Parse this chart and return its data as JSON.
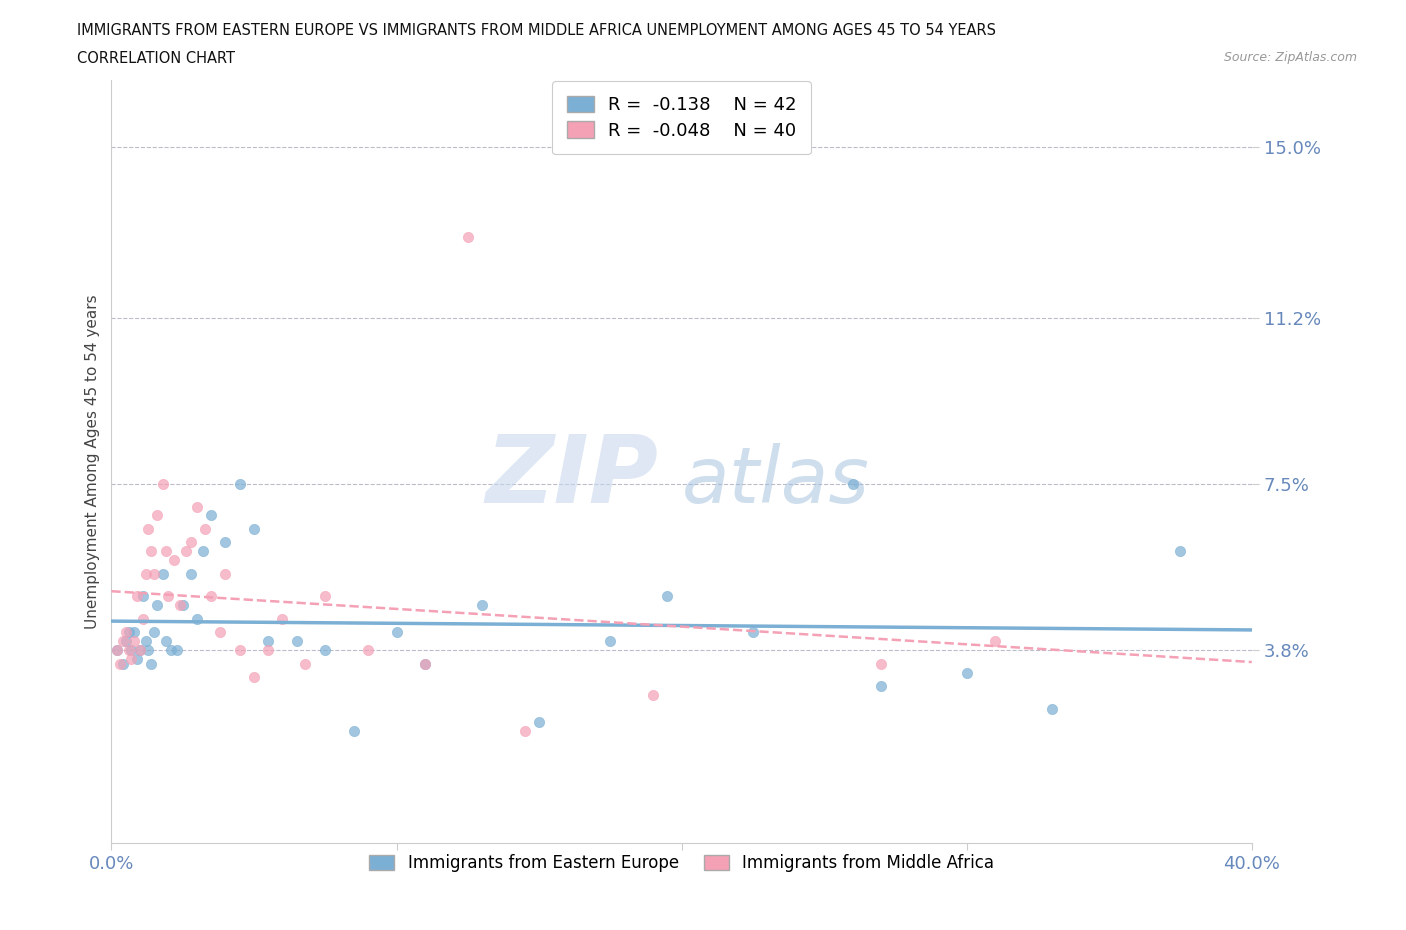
{
  "title_line1": "IMMIGRANTS FROM EASTERN EUROPE VS IMMIGRANTS FROM MIDDLE AFRICA UNEMPLOYMENT AMONG AGES 45 TO 54 YEARS",
  "title_line2": "CORRELATION CHART",
  "source_text": "Source: ZipAtlas.com",
  "ylabel": "Unemployment Among Ages 45 to 54 years",
  "xlim": [
    0.0,
    0.4
  ],
  "ylim": [
    -0.005,
    0.165
  ],
  "yticks": [
    0.038,
    0.075,
    0.112,
    0.15
  ],
  "ytick_labels": [
    "3.8%",
    "7.5%",
    "11.2%",
    "15.0%"
  ],
  "xticks": [
    0.0,
    0.1,
    0.2,
    0.3,
    0.4
  ],
  "xtick_labels_show": [
    "0.0%",
    "",
    "",
    "",
    "40.0%"
  ],
  "color_eastern_europe": "#7BAFD4",
  "color_middle_africa": "#F4A0B5",
  "legend_r_eastern": "-0.138",
  "legend_n_eastern": "42",
  "legend_r_middle": "-0.048",
  "legend_n_middle": "40",
  "ee_x": [
    0.002,
    0.004,
    0.005,
    0.006,
    0.007,
    0.008,
    0.009,
    0.01,
    0.011,
    0.012,
    0.013,
    0.014,
    0.015,
    0.016,
    0.018,
    0.019,
    0.021,
    0.023,
    0.025,
    0.028,
    0.03,
    0.032,
    0.035,
    0.04,
    0.045,
    0.05,
    0.055,
    0.065,
    0.075,
    0.085,
    0.1,
    0.11,
    0.13,
    0.15,
    0.175,
    0.195,
    0.225,
    0.26,
    0.27,
    0.3,
    0.33,
    0.375
  ],
  "ee_y": [
    0.038,
    0.035,
    0.04,
    0.042,
    0.038,
    0.042,
    0.036,
    0.038,
    0.05,
    0.04,
    0.038,
    0.035,
    0.042,
    0.048,
    0.055,
    0.04,
    0.038,
    0.038,
    0.048,
    0.055,
    0.045,
    0.06,
    0.068,
    0.062,
    0.075,
    0.065,
    0.04,
    0.04,
    0.038,
    0.02,
    0.042,
    0.035,
    0.048,
    0.022,
    0.04,
    0.05,
    0.042,
    0.075,
    0.03,
    0.033,
    0.025,
    0.06
  ],
  "ma_x": [
    0.002,
    0.003,
    0.004,
    0.005,
    0.006,
    0.007,
    0.008,
    0.009,
    0.01,
    0.011,
    0.012,
    0.013,
    0.014,
    0.015,
    0.016,
    0.018,
    0.019,
    0.02,
    0.022,
    0.024,
    0.026,
    0.028,
    0.03,
    0.033,
    0.035,
    0.038,
    0.04,
    0.045,
    0.05,
    0.055,
    0.06,
    0.068,
    0.075,
    0.09,
    0.11,
    0.125,
    0.145,
    0.19,
    0.27,
    0.31
  ],
  "ma_y": [
    0.038,
    0.035,
    0.04,
    0.042,
    0.038,
    0.036,
    0.04,
    0.05,
    0.038,
    0.045,
    0.055,
    0.065,
    0.06,
    0.055,
    0.068,
    0.075,
    0.06,
    0.05,
    0.058,
    0.048,
    0.06,
    0.062,
    0.07,
    0.065,
    0.05,
    0.042,
    0.055,
    0.038,
    0.032,
    0.038,
    0.045,
    0.035,
    0.05,
    0.038,
    0.035,
    0.13,
    0.02,
    0.028,
    0.035,
    0.04
  ],
  "watermark_zip": "ZIP",
  "watermark_atlas": "atlas",
  "background_color": "#FFFFFF",
  "grid_color": "#BBBBCC",
  "tick_label_color": "#6688BB"
}
